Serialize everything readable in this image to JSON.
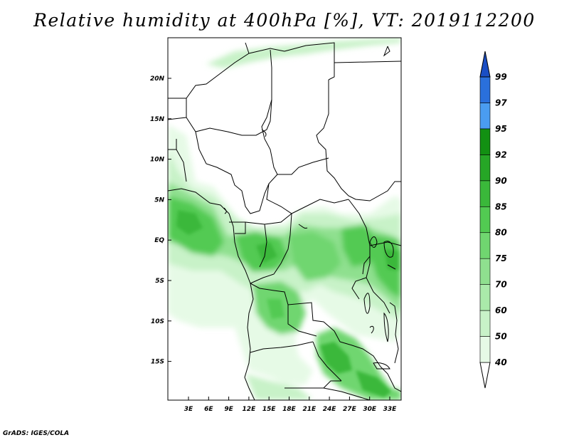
{
  "title": "Relative humidity at 400hPa [%], VT: 2019112200",
  "credit": "GrADS: IGES/COLA",
  "map": {
    "x_ticks": [
      "3E",
      "6E",
      "9E",
      "12E",
      "15E",
      "18E",
      "21E",
      "24E",
      "27E",
      "30E",
      "33E"
    ],
    "y_ticks": [
      "20N",
      "15N",
      "10N",
      "5N",
      "EQ",
      "5S",
      "10S",
      "15S"
    ]
  },
  "colorbar": {
    "levels": [
      "40",
      "50",
      "60",
      "70",
      "75",
      "80",
      "85",
      "90",
      "92",
      "95",
      "97",
      "99"
    ],
    "colors": [
      "#ffffff",
      "#e6fae6",
      "#c8f2c8",
      "#aaeaaa",
      "#8fe08f",
      "#70d670",
      "#52ca52",
      "#3ab83a",
      "#26a626",
      "#129012",
      "#4a9cf0",
      "#2a70dc",
      "#1a4ec4"
    ]
  }
}
